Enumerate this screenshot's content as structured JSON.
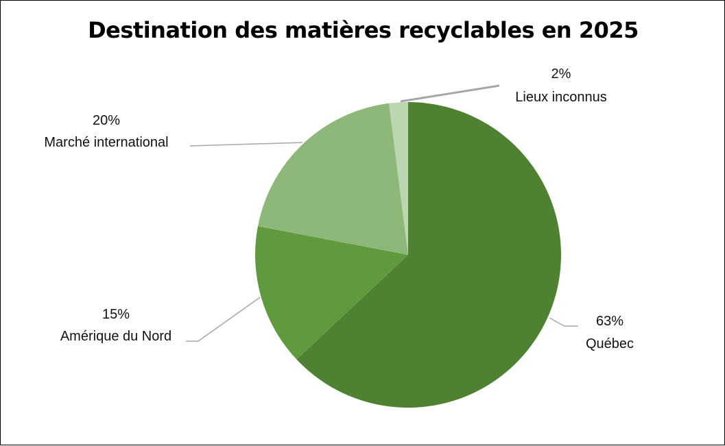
{
  "chart_data": {
    "type": "pie",
    "title": "Destination des matières recyclables en 2025",
    "categories": [
      "Québec",
      "Amérique du Nord",
      "Marché international",
      "Lieux inconnus"
    ],
    "values": [
      63,
      15,
      20,
      2
    ],
    "percent_labels": [
      "63%",
      "15%",
      "20%",
      "2%"
    ],
    "colors": [
      "#4e8132",
      "#5f9b3e",
      "#8db87a",
      "#bcd6b1"
    ],
    "label_position": "outside-with-leader-lines",
    "legend": "none"
  }
}
